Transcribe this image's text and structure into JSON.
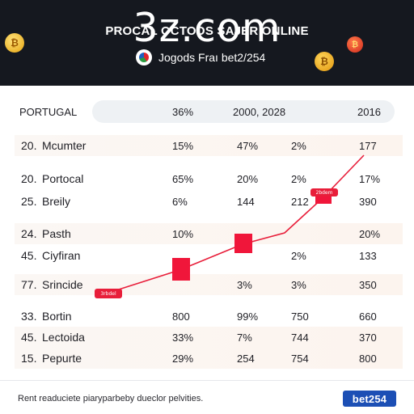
{
  "header": {
    "big_title": "3z.com",
    "sub_title": "PROCAL OCTODS SAJER ONLINE",
    "tagline": "Jogods Fraı bet2/254"
  },
  "table": {
    "headers": [
      "PORTUGAL",
      "36%",
      "2000, 2028",
      "",
      "2016"
    ],
    "rows": [
      {
        "num": "20.",
        "name": "Mcumter",
        "a": "15%",
        "b": "47%",
        "c": "2%",
        "d": "177"
      },
      {
        "num": "20.",
        "name": "Portocal",
        "a": "65%",
        "b": "20%",
        "c": "2%",
        "d": "17%"
      },
      {
        "num": "25.",
        "name": "Breily",
        "a": "6%",
        "b": "144",
        "c": "212",
        "d": "390"
      },
      {
        "num": "24.",
        "name": "Pasth",
        "a": "10%",
        "b": "",
        "c": "",
        "d": "20%"
      },
      {
        "num": "45.",
        "name": "Ciyfiran",
        "a": "",
        "b": "",
        "c": "2%",
        "d": "133"
      },
      {
        "num": "77.",
        "name": "Srincide",
        "a": "",
        "b": "3%",
        "c": "3%",
        "d": "350"
      },
      {
        "num": "33.",
        "name": "Bortin",
        "a": "800",
        "b": "99%",
        "c": "750",
        "d": "660"
      },
      {
        "num": "45.",
        "name": "Lectoida",
        "a": "33%",
        "b": "7%",
        "c": "744",
        "d": "370"
      },
      {
        "num": "15.",
        "name": "Pepurte",
        "a": "29%",
        "b": "254",
        "c": "754",
        "d": "800"
      }
    ]
  },
  "overlay": {
    "label_low": "3rbdel",
    "label_high": "2bdem"
  },
  "footer": {
    "text": "Rent readuciete piaryparbeby dueclor pelvities.",
    "logo": "bet254"
  },
  "colors": {
    "header_bg": "#15181f",
    "accent_red": "#e81e3a",
    "logo_blue": "#1c4fb5"
  }
}
